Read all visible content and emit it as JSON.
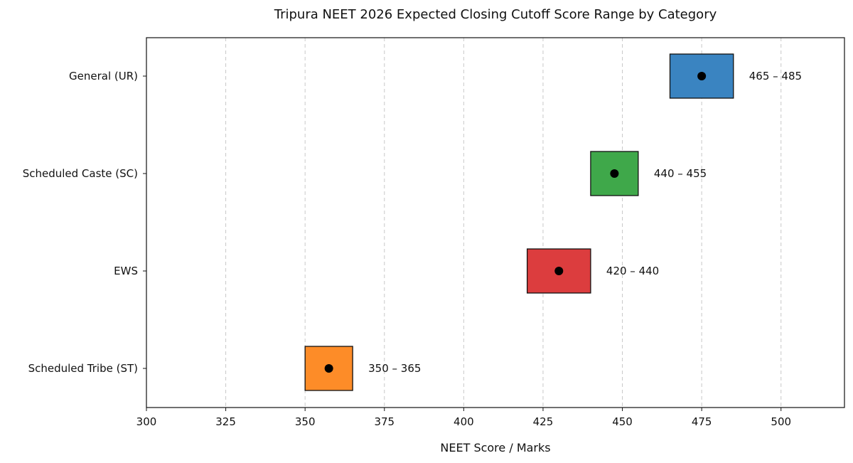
{
  "chart_data": {
    "type": "range",
    "title": "Tripura NEET 2026 Expected Closing Cutoff Score Range by Category",
    "xlabel": "NEET Score / Marks",
    "ylabel": "",
    "xlim": [
      300,
      520
    ],
    "xticks": [
      300,
      325,
      350,
      375,
      400,
      425,
      450,
      475,
      500
    ],
    "grid": "vertical dashed",
    "categories": [
      "General (UR)",
      "Scheduled Caste (SC)",
      "EWS",
      "Scheduled Tribe (ST)"
    ],
    "ranges": [
      {
        "category": "General (UR)",
        "low": 465,
        "high": 485,
        "midpoint": 475,
        "label": "465 – 485",
        "color": "#3a84c1"
      },
      {
        "category": "Scheduled Caste (SC)",
        "low": 440,
        "high": 455,
        "midpoint": 447.5,
        "label": "440 – 455",
        "color": "#3fa84a"
      },
      {
        "category": "EWS",
        "low": 420,
        "high": 440,
        "midpoint": 430,
        "label": "420 – 440",
        "color": "#dc3d3e"
      },
      {
        "category": "Scheduled Tribe (ST)",
        "low": 350,
        "high": 365,
        "midpoint": 357.5,
        "label": "350 – 365",
        "color": "#fd8c28"
      }
    ]
  }
}
